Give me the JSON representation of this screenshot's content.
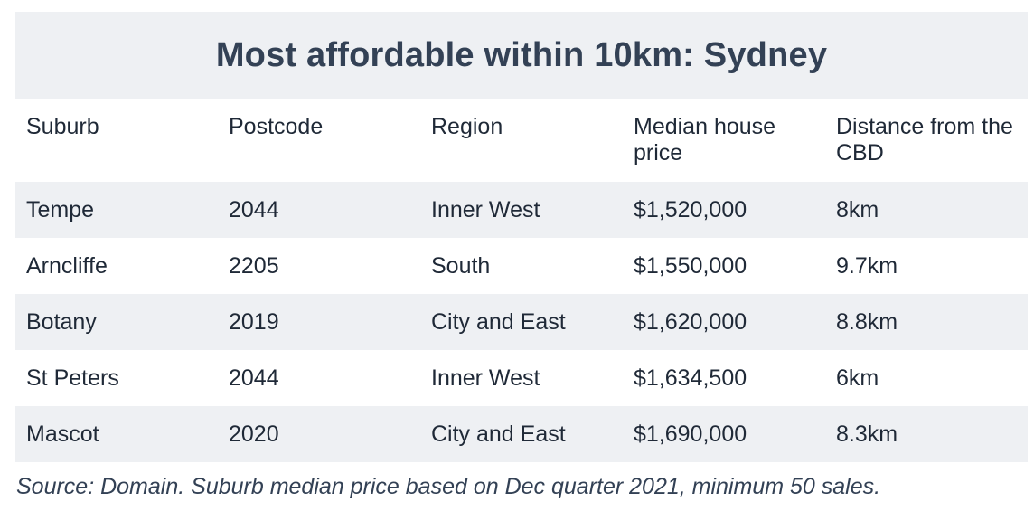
{
  "title": "Most affordable within 10km: Sydney",
  "table": {
    "headers": [
      "Suburb",
      "Postcode",
      "Region",
      "Median house price",
      "Distance from the CBD"
    ],
    "rows": [
      [
        "Tempe",
        "2044",
        "Inner West",
        "$1,520,000",
        "8km"
      ],
      [
        "Arncliffe",
        "2205",
        "South",
        "$1,550,000",
        "9.7km"
      ],
      [
        "Botany",
        "2019",
        "City and East",
        "$1,620,000",
        "8.8km"
      ],
      [
        "St Peters",
        "2044",
        "Inner West",
        "$1,634,500",
        "6km"
      ],
      [
        "Mascot",
        "2020",
        "City and East",
        "$1,690,000",
        "8.3km"
      ]
    ]
  },
  "source": "Source: Domain. Suburb median price based on Dec quarter 2021, minimum 50 sales.",
  "colors": {
    "stripe": "#eef0f3",
    "title_text": "#334155",
    "body_text": "#1f2937"
  }
}
